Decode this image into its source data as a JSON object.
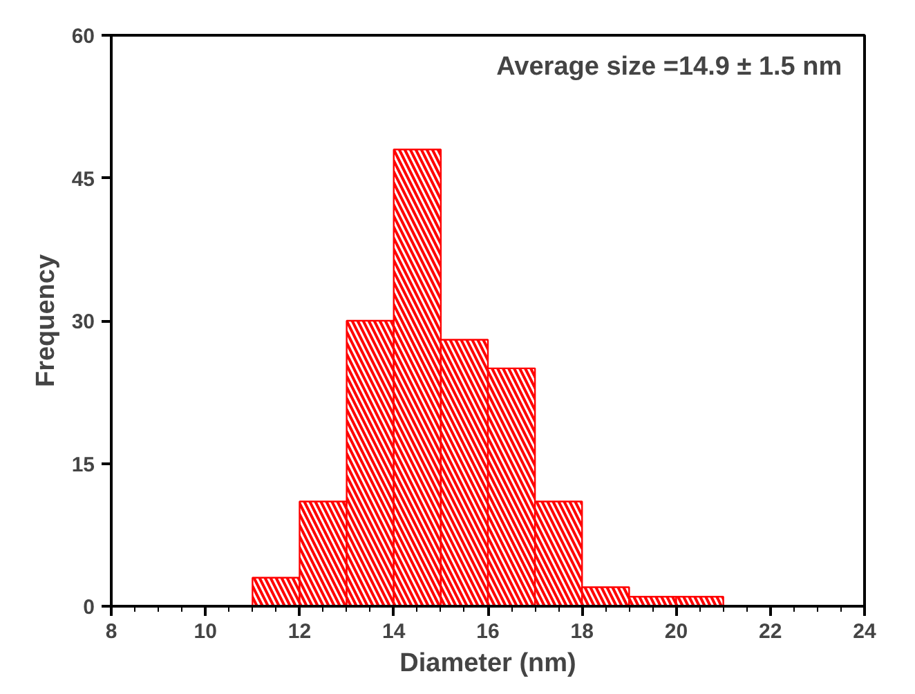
{
  "chart_data": {
    "type": "histogram",
    "xlabel": "Diameter (nm)",
    "ylabel": "Frequency",
    "annotations": [
      "Average size =14.9 ± 1.5 nm"
    ],
    "bins": [
      11,
      12,
      13,
      14,
      15,
      16,
      17,
      18,
      19,
      20,
      21
    ],
    "values": [
      3,
      11,
      30,
      48,
      28,
      25,
      11,
      2,
      1,
      1
    ],
    "color": "#ff0000",
    "xlim": [
      8,
      24
    ],
    "xticks": [
      8,
      10,
      12,
      14,
      16,
      18,
      20,
      22,
      24
    ],
    "ylim": [
      0,
      60
    ],
    "yticks": [
      0,
      15,
      30,
      45,
      60
    ],
    "grid": false,
    "legend": false
  }
}
